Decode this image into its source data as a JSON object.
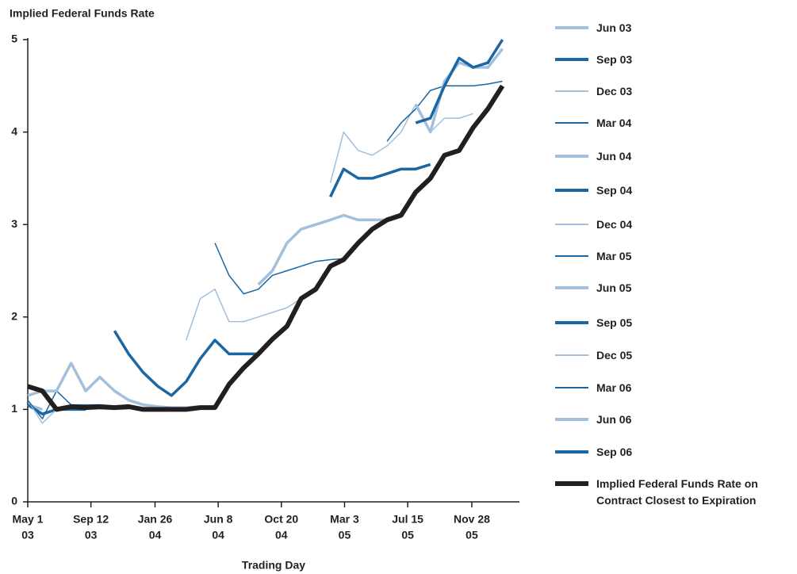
{
  "chart_data": {
    "type": "line",
    "title": "Implied Federal Funds Rate",
    "xlabel": "Trading Day",
    "x": [
      "2003-05-01",
      "2003-06-01",
      "2003-07-01",
      "2003-08-01",
      "2003-09-01",
      "2003-10-01",
      "2003-11-01",
      "2003-12-01",
      "2004-01-01",
      "2004-02-01",
      "2004-03-01",
      "2004-04-01",
      "2004-05-01",
      "2004-06-01",
      "2004-07-01",
      "2004-08-01",
      "2004-09-01",
      "2004-10-01",
      "2004-11-01",
      "2004-12-01",
      "2005-01-01",
      "2005-02-01",
      "2005-03-01",
      "2005-04-01",
      "2005-05-01",
      "2005-06-01",
      "2005-07-01",
      "2005-08-01",
      "2005-09-01",
      "2005-10-01",
      "2005-11-01",
      "2005-12-01",
      "2006-01-01",
      "2006-02-01"
    ],
    "xlim": [
      "2003-05-01",
      "2006-03-09"
    ],
    "xticks": [
      {
        "value": "2003-05-01",
        "label": [
          "May 1",
          "03"
        ]
      },
      {
        "value": "2003-09-12",
        "label": [
          "Sep 12",
          "03"
        ]
      },
      {
        "value": "2004-01-26",
        "label": [
          "Jan 26",
          "04"
        ]
      },
      {
        "value": "2004-06-08",
        "label": [
          "Jun 8",
          "04"
        ]
      },
      {
        "value": "2004-10-20",
        "label": [
          "Oct 20",
          "04"
        ]
      },
      {
        "value": "2005-03-03",
        "label": [
          "Mar 3",
          "05"
        ]
      },
      {
        "value": "2005-07-15",
        "label": [
          "Jul 15",
          "05"
        ]
      },
      {
        "value": "2005-11-28",
        "label": [
          "Nov 28",
          "05"
        ]
      }
    ],
    "ylim": [
      0,
      5
    ],
    "yticks": [
      0,
      1,
      2,
      3,
      4,
      5
    ],
    "series": [
      {
        "name": "Jun 03",
        "color": "#a3bfdc",
        "width": 3.5,
        "values": [
          1.05,
          1.0,
          null,
          null,
          null,
          null,
          null,
          null,
          null,
          null,
          null,
          null,
          null,
          null,
          null,
          null,
          null,
          null,
          null,
          null,
          null,
          null,
          null,
          null,
          null,
          null,
          null,
          null,
          null,
          null,
          null,
          null,
          null,
          null
        ]
      },
      {
        "name": "Sep 03",
        "color": "#1a67a3",
        "width": 3.5,
        "values": [
          1.05,
          0.95,
          1.0,
          1.0,
          1.0,
          null,
          null,
          null,
          null,
          null,
          null,
          null,
          null,
          null,
          null,
          null,
          null,
          null,
          null,
          null,
          null,
          null,
          null,
          null,
          null,
          null,
          null,
          null,
          null,
          null,
          null,
          null,
          null,
          null
        ]
      },
      {
        "name": "Dec 03",
        "color": "#a3bfdc",
        "width": 1.5,
        "values": [
          1.1,
          0.85,
          1.0,
          1.02,
          1.0,
          1.0,
          1.0,
          1.0,
          null,
          null,
          null,
          null,
          null,
          null,
          null,
          null,
          null,
          null,
          null,
          null,
          null,
          null,
          null,
          null,
          null,
          null,
          null,
          null,
          null,
          null,
          null,
          null,
          null,
          null
        ]
      },
      {
        "name": "Mar 04",
        "color": "#1a67a3",
        "width": 1.5,
        "values": [
          1.1,
          0.9,
          1.2,
          1.05,
          1.05,
          1.05,
          1.03,
          1.02,
          1.0,
          1.0,
          1.0,
          null,
          null,
          null,
          null,
          null,
          null,
          null,
          null,
          null,
          null,
          null,
          null,
          null,
          null,
          null,
          null,
          null,
          null,
          null,
          null,
          null,
          null,
          null
        ]
      },
      {
        "name": "Jun 04",
        "color": "#a3bfdc",
        "width": 3.5,
        "values": [
          1.15,
          1.2,
          1.2,
          1.5,
          1.2,
          1.35,
          1.2,
          1.1,
          1.05,
          1.03,
          1.02,
          1.02,
          1.03,
          1.02,
          null,
          null,
          null,
          null,
          null,
          null,
          null,
          null,
          null,
          null,
          null,
          null,
          null,
          null,
          null,
          null,
          null,
          null,
          null,
          null
        ]
      },
      {
        "name": "Sep 04",
        "color": "#1a67a3",
        "width": 3.5,
        "values": [
          null,
          null,
          null,
          null,
          null,
          null,
          1.85,
          1.6,
          1.4,
          1.25,
          1.15,
          1.3,
          1.55,
          1.75,
          1.6,
          1.6,
          1.6,
          null,
          null,
          null,
          null,
          null,
          null,
          null,
          null,
          null,
          null,
          null,
          null,
          null,
          null,
          null,
          null,
          null
        ]
      },
      {
        "name": "Dec 04",
        "color": "#a3bfdc",
        "width": 1.5,
        "values": [
          null,
          null,
          null,
          null,
          null,
          null,
          null,
          null,
          null,
          null,
          null,
          1.75,
          2.2,
          2.3,
          1.95,
          1.95,
          2.0,
          2.05,
          2.1,
          2.2,
          null,
          null,
          null,
          null,
          null,
          null,
          null,
          null,
          null,
          null,
          null,
          null,
          null,
          null
        ]
      },
      {
        "name": "Mar 05",
        "color": "#1a67a3",
        "width": 1.5,
        "values": [
          null,
          null,
          null,
          null,
          null,
          null,
          null,
          null,
          null,
          null,
          null,
          null,
          null,
          2.8,
          2.45,
          2.25,
          2.3,
          2.45,
          2.5,
          2.55,
          2.6,
          2.62,
          2.63,
          null,
          null,
          null,
          null,
          null,
          null,
          null,
          null,
          null,
          null,
          null
        ]
      },
      {
        "name": "Jun 05",
        "color": "#a3bfdc",
        "width": 3.5,
        "values": [
          null,
          null,
          null,
          null,
          null,
          null,
          null,
          null,
          null,
          null,
          null,
          null,
          null,
          null,
          null,
          null,
          2.35,
          2.5,
          2.8,
          2.95,
          3.0,
          3.05,
          3.1,
          3.05,
          3.05,
          3.05,
          null,
          null,
          null,
          null,
          null,
          null,
          null,
          null
        ]
      },
      {
        "name": "Sep 05",
        "color": "#1a67a3",
        "width": 3.5,
        "values": [
          null,
          null,
          null,
          null,
          null,
          null,
          null,
          null,
          null,
          null,
          null,
          null,
          null,
          null,
          null,
          null,
          null,
          null,
          null,
          null,
          null,
          3.3,
          3.6,
          3.5,
          3.5,
          3.55,
          3.6,
          3.6,
          3.65,
          null,
          null,
          null,
          null,
          null
        ]
      },
      {
        "name": "Dec 05",
        "color": "#a3bfdc",
        "width": 1.5,
        "values": [
          null,
          null,
          null,
          null,
          null,
          null,
          null,
          null,
          null,
          null,
          null,
          null,
          null,
          null,
          null,
          null,
          null,
          null,
          null,
          null,
          null,
          3.45,
          4.0,
          3.8,
          3.75,
          3.85,
          4.0,
          4.3,
          4.0,
          4.15,
          4.15,
          4.2,
          null,
          null
        ]
      },
      {
        "name": "Mar 06",
        "color": "#1a67a3",
        "width": 1.5,
        "values": [
          null,
          null,
          null,
          null,
          null,
          null,
          null,
          null,
          null,
          null,
          null,
          null,
          null,
          null,
          null,
          null,
          null,
          null,
          null,
          null,
          null,
          null,
          null,
          null,
          null,
          3.9,
          4.1,
          4.25,
          4.45,
          4.5,
          4.5,
          4.5,
          4.52,
          4.55
        ]
      },
      {
        "name": "Jun 06",
        "color": "#a3bfdc",
        "width": 3.5,
        "values": [
          null,
          null,
          null,
          null,
          null,
          null,
          null,
          null,
          null,
          null,
          null,
          null,
          null,
          null,
          null,
          null,
          null,
          null,
          null,
          null,
          null,
          null,
          null,
          null,
          null,
          null,
          null,
          4.3,
          4.0,
          4.55,
          4.75,
          4.7,
          4.7,
          4.9
        ]
      },
      {
        "name": "Sep 06",
        "color": "#1a67a3",
        "width": 3.5,
        "values": [
          null,
          null,
          null,
          null,
          null,
          null,
          null,
          null,
          null,
          null,
          null,
          null,
          null,
          null,
          null,
          null,
          null,
          null,
          null,
          null,
          null,
          null,
          null,
          null,
          null,
          null,
          null,
          4.1,
          4.15,
          4.5,
          4.8,
          4.7,
          4.75,
          5.0
        ]
      },
      {
        "name": "Implied Federal Funds Rate on Contract Closest to Expiration",
        "color": "#231f20",
        "width": 6,
        "values": [
          1.25,
          1.2,
          1.0,
          1.03,
          1.02,
          1.03,
          1.02,
          1.03,
          1.0,
          1.0,
          1.0,
          1.0,
          1.02,
          1.02,
          1.27,
          1.45,
          1.6,
          1.76,
          1.9,
          2.2,
          2.3,
          2.55,
          2.62,
          2.8,
          2.95,
          3.05,
          3.1,
          3.35,
          3.5,
          3.75,
          3.8,
          4.05,
          4.25,
          4.5
        ]
      }
    ]
  }
}
